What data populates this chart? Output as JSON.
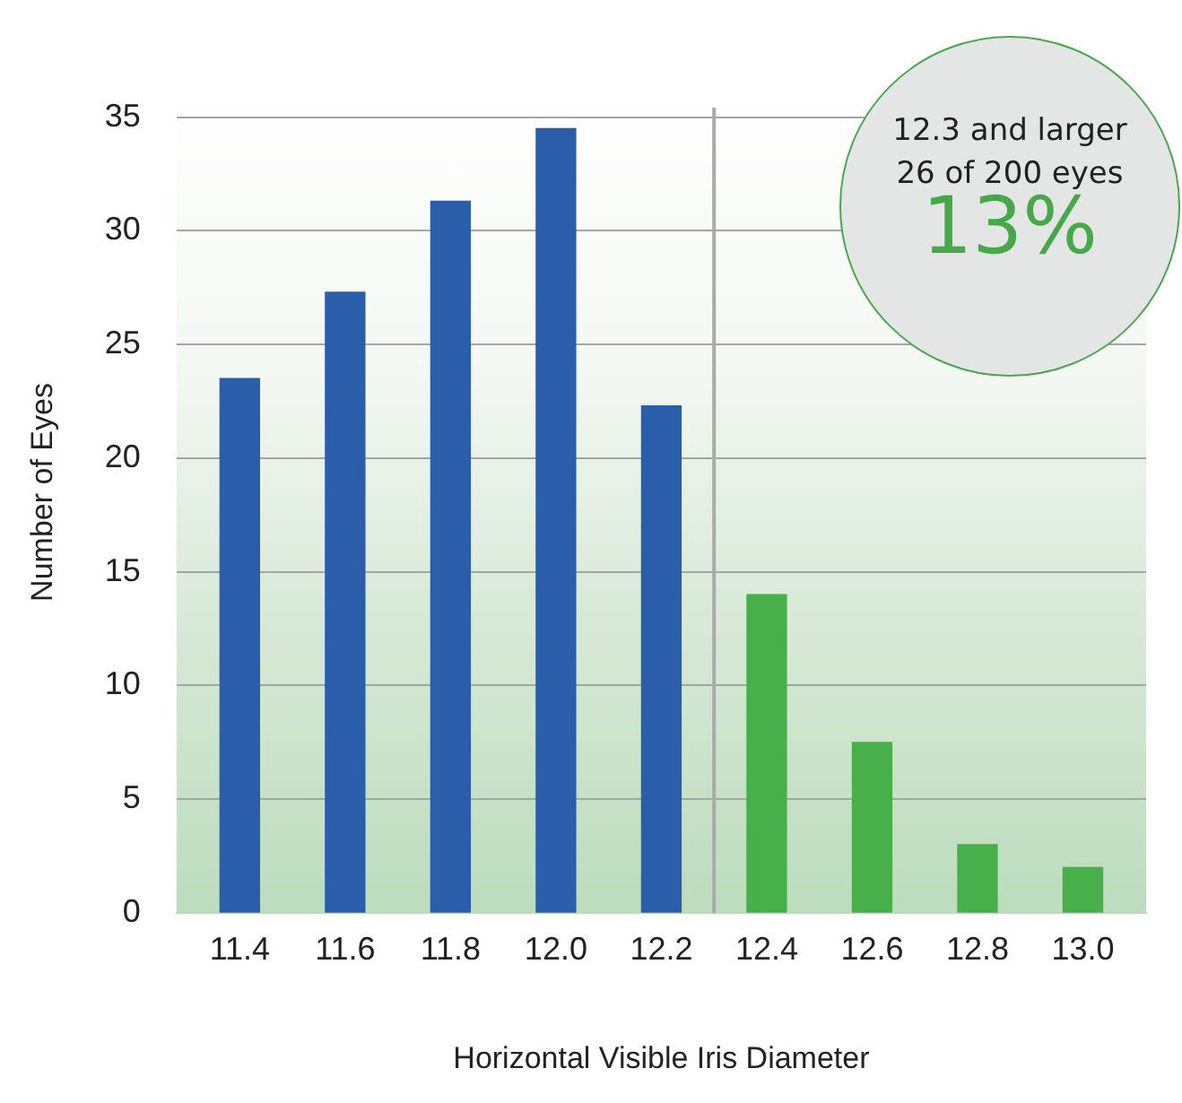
{
  "chart_data": {
    "type": "bar",
    "xlabel": "Horizontal Visible Iris Diameter",
    "ylabel": "Number of Eyes",
    "x": [
      11.4,
      11.6,
      11.8,
      12.0,
      12.2,
      12.4,
      12.6,
      12.8,
      13.0
    ],
    "values": [
      23.5,
      27.3,
      31.3,
      34.5,
      22.3,
      14,
      7.5,
      3,
      2
    ],
    "colors": [
      "#2a5daa",
      "#2a5daa",
      "#2a5daa",
      "#2a5daa",
      "#2a5daa",
      "#47b04b",
      "#47b04b",
      "#47b04b",
      "#47b04b"
    ],
    "xlim": [
      11.28,
      13.12
    ],
    "xticks": [
      11.4,
      11.6,
      11.8,
      {
        "value": 12,
        "label": "12.0"
      },
      12.2,
      12.4,
      12.6,
      12.8,
      {
        "value": 13,
        "label": "13.0"
      }
    ],
    "ylim": [
      0,
      37
    ],
    "yticks": [
      0,
      5,
      10,
      15,
      20,
      25,
      30,
      35
    ],
    "grid": "y",
    "ref_lines": [
      {
        "axis": "x",
        "value": 12.3,
        "color": "#aaaaaa"
      }
    ],
    "annotations": [
      "12.3 and larger",
      "26 of 200 eyes",
      "13%"
    ]
  }
}
